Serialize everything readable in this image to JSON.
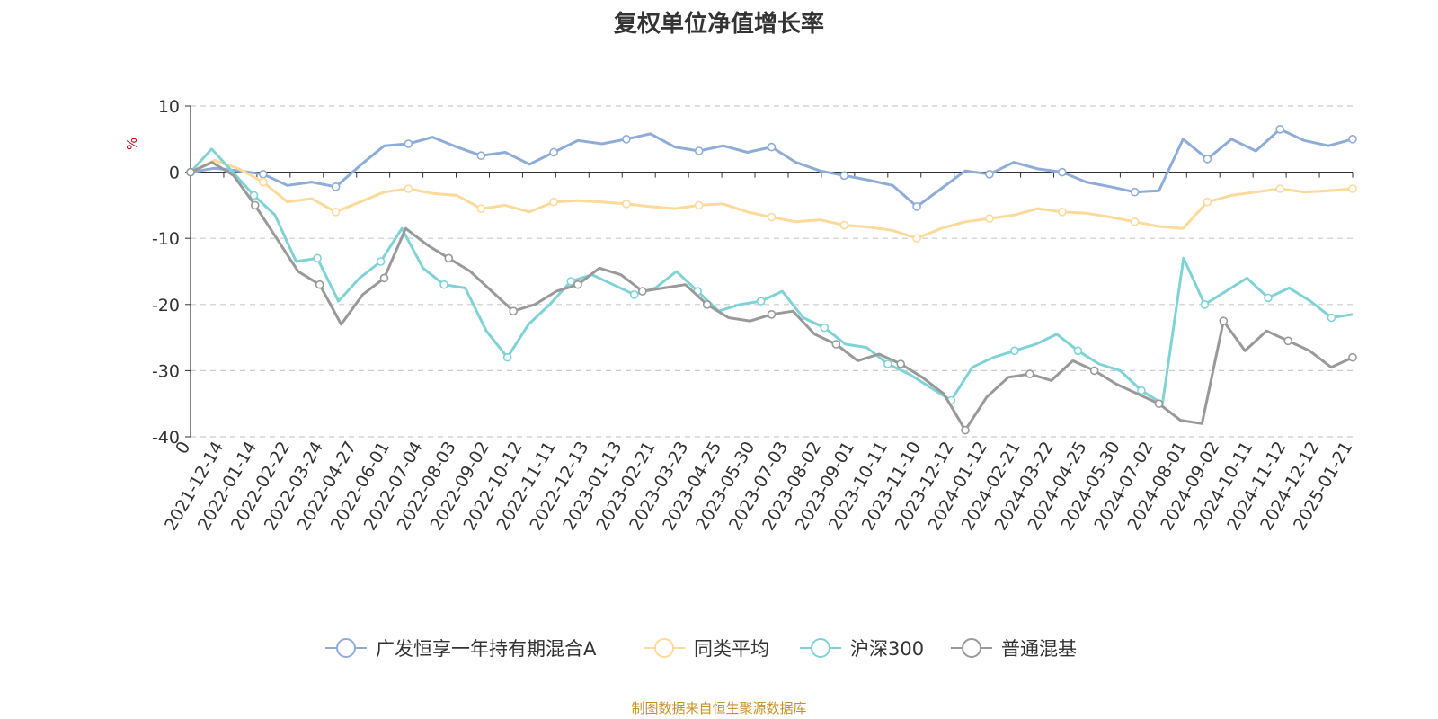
{
  "chart_data": {
    "type": "line",
    "title": "复权单位净值增长率",
    "ylabel": "%",
    "ylim": [
      -40,
      10
    ],
    "yticks": [
      10,
      0,
      -10,
      -20,
      -30,
      -40
    ],
    "x_tick_labels": [
      "0",
      "2021-12-14",
      "2022-01-14",
      "2022-02-22",
      "2022-03-24",
      "2022-04-27",
      "2022-06-01",
      "2022-07-04",
      "2022-08-03",
      "2022-09-02",
      "2022-10-12",
      "2022-11-11",
      "2022-12-13",
      "2023-01-13",
      "2023-02-21",
      "2023-03-23",
      "2023-04-25",
      "2023-05-30",
      "2023-07-03",
      "2023-08-02",
      "2023-09-01",
      "2023-10-11",
      "2023-11-10",
      "2023-12-12",
      "2024-01-12",
      "2024-02-21",
      "2024-03-22",
      "2024-04-25",
      "2024-05-30",
      "2024-07-02",
      "2024-08-01",
      "2024-09-02",
      "2024-10-11",
      "2024-11-12",
      "2024-12-12",
      "2025-01-21"
    ],
    "grid": true,
    "legend_position": "bottom",
    "series": [
      {
        "name": "广发恒享一年持有期混合A",
        "color": "#8eacd8",
        "values": [
          0,
          0.6,
          0.2,
          -0.3,
          -2,
          -1.5,
          -2.2,
          1,
          4,
          4.3,
          5.3,
          3.8,
          2.5,
          3,
          1.2,
          3,
          4.8,
          4.3,
          5,
          5.8,
          3.8,
          3.2,
          4,
          3,
          3.8,
          1.5,
          0.2,
          -0.5,
          -1.2,
          -2,
          -5.2,
          -2.5,
          0.2,
          -0.3,
          1.5,
          0.5,
          0,
          -1.5,
          -2.2,
          -3,
          -2.8,
          5,
          2,
          5,
          3.2,
          6.5,
          4.8,
          4,
          5
        ]
      },
      {
        "name": "同类平均",
        "color": "#fdd99a",
        "values": [
          0,
          1.8,
          0.5,
          -1.5,
          -4.5,
          -4,
          -6,
          -4.5,
          -3,
          -2.5,
          -3.2,
          -3.5,
          -5.5,
          -5,
          -6,
          -4.5,
          -4.3,
          -4.5,
          -4.8,
          -5.2,
          -5.5,
          -5,
          -4.8,
          -6,
          -6.8,
          -7.5,
          -7.2,
          -8,
          -8.3,
          -8.8,
          -10,
          -8.5,
          -7.5,
          -7,
          -6.5,
          -5.5,
          -6,
          -6.2,
          -6.8,
          -7.5,
          -8.2,
          -8.5,
          -4.5,
          -3.5,
          -3,
          -2.5,
          -3,
          -2.8,
          -2.5
        ]
      },
      {
        "name": "沪深300",
        "color": "#7fd3d6",
        "values": [
          0,
          3.5,
          0,
          -3.5,
          -6.5,
          -13.5,
          -13,
          -19.5,
          -16,
          -13.5,
          -8.5,
          -14.5,
          -17,
          -17.5,
          -24,
          -28,
          -23,
          -20,
          -16.5,
          -15.5,
          -17,
          -18.5,
          -17.5,
          -15,
          -18,
          -21,
          -20,
          -19.5,
          -18,
          -22,
          -23.5,
          -26,
          -26.5,
          -29,
          -30.5,
          -32.5,
          -34.5,
          -29.5,
          -28,
          -27,
          -26,
          -24.5,
          -27,
          -29,
          -30,
          -33,
          -35,
          -13,
          -20,
          -18,
          -16,
          -19,
          -17.5,
          -19.5,
          -22,
          -21.5
        ]
      },
      {
        "name": "普通混基",
        "color": "#999999",
        "values": [
          0,
          1.5,
          -0.5,
          -5,
          -10,
          -15,
          -17,
          -23,
          -18.5,
          -16,
          -8.5,
          -11,
          -13,
          -15,
          -18,
          -21,
          -20,
          -18,
          -17,
          -14.5,
          -15.5,
          -18,
          -17.5,
          -17,
          -20,
          -22,
          -22.5,
          -21.5,
          -21,
          -24.5,
          -26,
          -28.5,
          -27.5,
          -29,
          -31,
          -33.5,
          -39,
          -34,
          -31,
          -30.5,
          -31.5,
          -28.5,
          -30,
          -32,
          -33.5,
          -35,
          -37.5,
          -38,
          -22.5,
          -27,
          -24,
          -25.5,
          -27,
          -29.5,
          -28
        ]
      }
    ],
    "source_note": "制图数据来自恒生聚源数据库"
  }
}
